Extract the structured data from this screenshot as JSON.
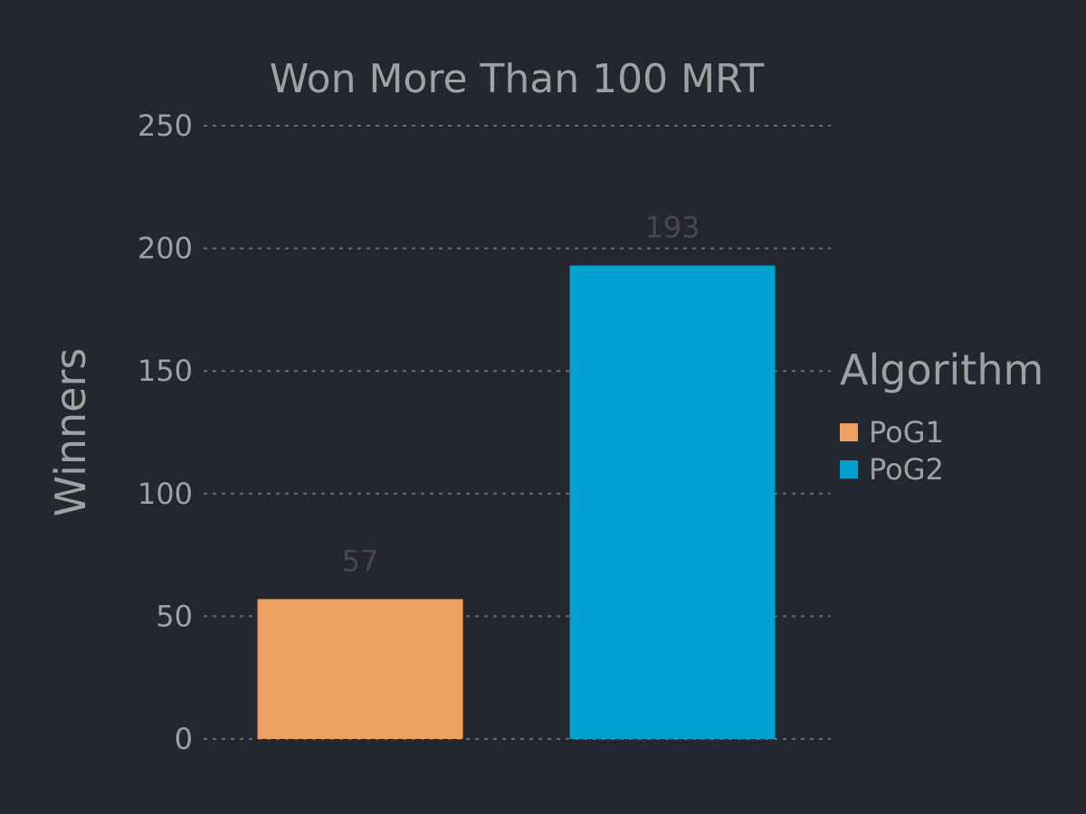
{
  "chart_data": {
    "type": "bar",
    "title": "Won More Than 100 MRT",
    "xlabel": "",
    "ylabel": "Winners",
    "categories": [
      "PoG1",
      "PoG2"
    ],
    "values": [
      57,
      193
    ],
    "data_labels": [
      "57",
      "193"
    ],
    "ylim": [
      0,
      250
    ],
    "yticks": [
      0,
      50,
      100,
      150,
      200,
      250
    ],
    "ytick_labels": [
      "0",
      "50",
      "100",
      "150",
      "200",
      "250"
    ],
    "grid": true,
    "legend": {
      "title": "Algorithm",
      "placement": "right",
      "entries": [
        "PoG1",
        "PoG2"
      ]
    },
    "colors": [
      "#eba05f",
      "#00a2d0"
    ],
    "background": "#222730"
  }
}
